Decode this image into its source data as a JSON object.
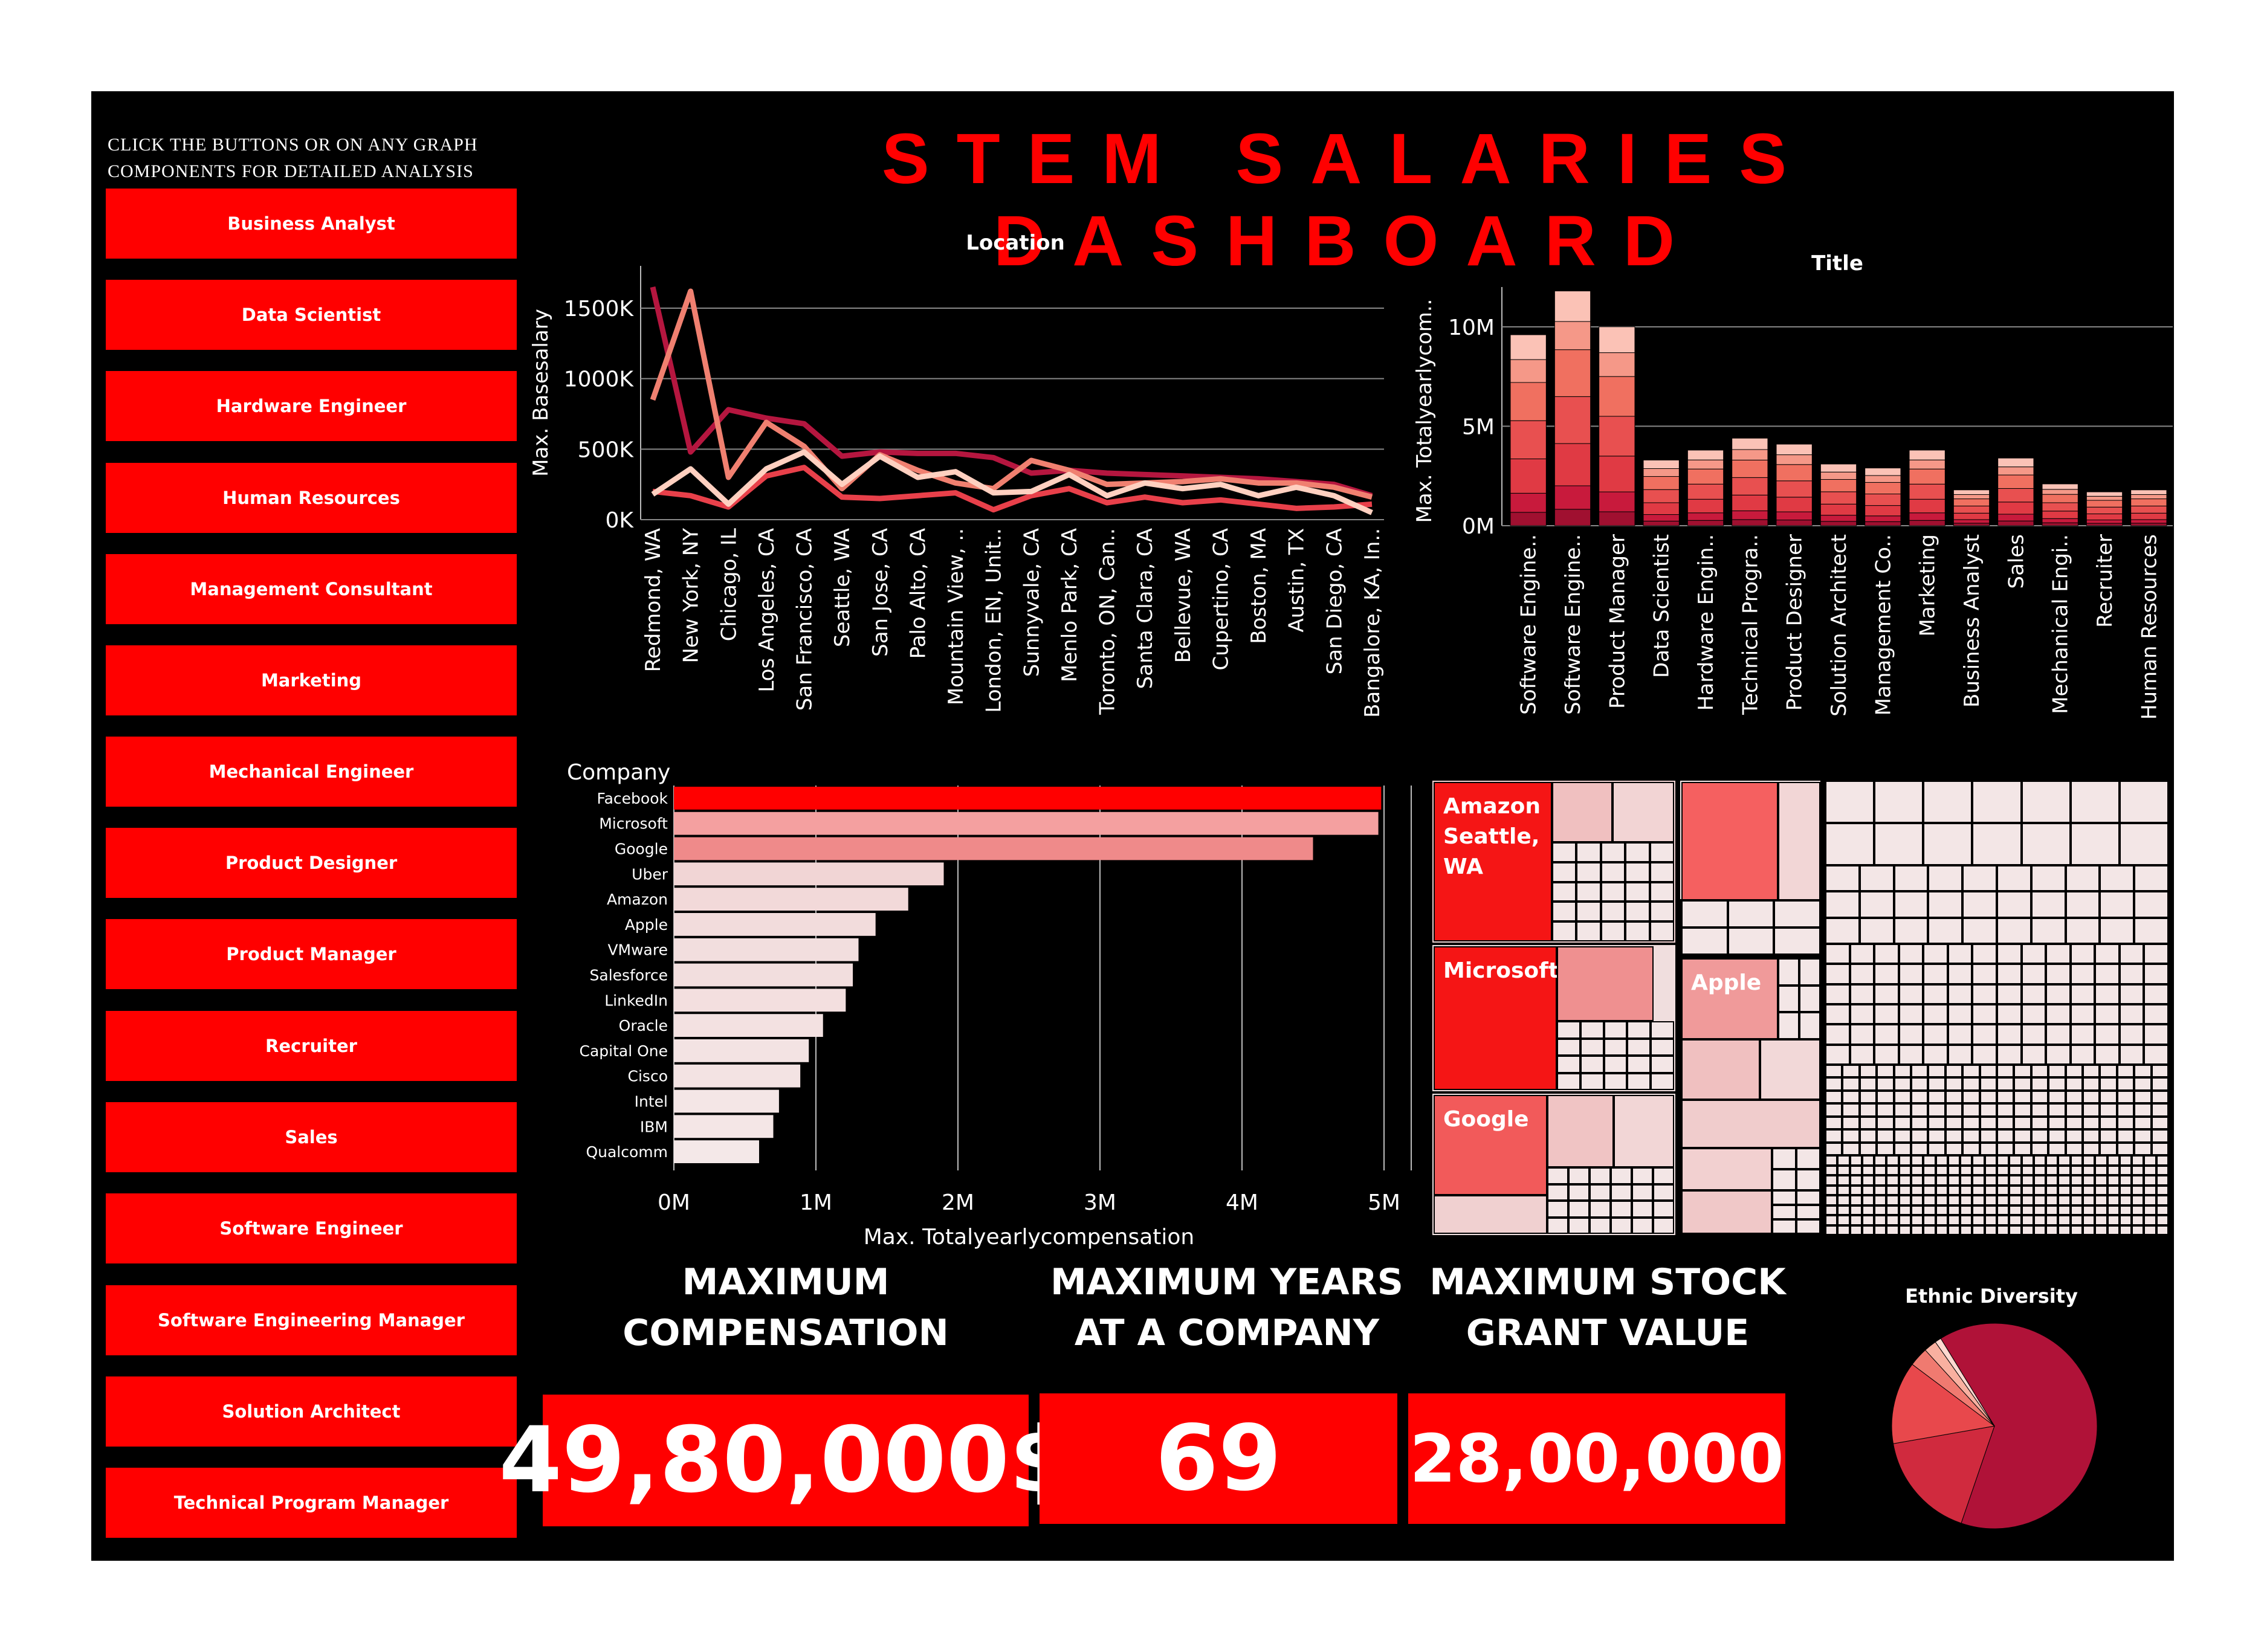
{
  "dashboard": {
    "title": "STEM SALARIES DASHBOARD",
    "instructions": "CLICK THE BUTTONS OR ON ANY GRAPH COMPONENTS FOR DETAILED ANALYSIS"
  },
  "filters": [
    "Business Analyst",
    "Data Scientist",
    "Hardware Engineer",
    "Human Resources",
    "Management Consultant",
    "Marketing",
    "Mechanical Engineer",
    "Product Designer",
    "Product Manager",
    "Recruiter",
    "Sales",
    "Software Engineer",
    "Software Engineering Manager",
    "Solution Architect",
    "Technical Program Manager"
  ],
  "kpis": {
    "max_compensation": {
      "label_line1": "MAXIMUM",
      "label_line2": "COMPENSATION",
      "value": "49,80,000$"
    },
    "max_years": {
      "label_line1": "MAXIMUM YEARS",
      "label_line2": "AT A COMPANY",
      "value": "69"
    },
    "max_stock": {
      "label_line1": "MAXIMUM STOCK",
      "label_line2": "GRANT VALUE",
      "value": "28,00,000"
    }
  },
  "colors": {
    "accent": "#ff0000",
    "background": "#000000"
  },
  "chart_data": [
    {
      "id": "location",
      "type": "line",
      "title": "Location",
      "ylabel": "Max. Basesalary",
      "ylim": [
        0,
        1800000
      ],
      "yticks": [
        "0K",
        "500K",
        "1000K",
        "1500K"
      ],
      "categories": [
        "Redmond, WA",
        "New York, NY",
        "Chicago, IL",
        "Los Angeles, CA",
        "San Francisco, CA",
        "Seattle, WA",
        "San Jose, CA",
        "Palo Alto, CA",
        "Mountain View, ..",
        "London, EN, Unit..",
        "Sunnyvale, CA",
        "Menlo Park, CA",
        "Toronto, ON, Can..",
        "Santa Clara, CA",
        "Bellevue, WA",
        "Cupertino, CA",
        "Boston, MA",
        "Austin, TX",
        "San Diego, CA",
        "Bangalore, KA, In.."
      ],
      "series": [
        {
          "color": "#b5163f",
          "values": [
            1650000,
            480000,
            780000,
            720000,
            680000,
            450000,
            480000,
            470000,
            470000,
            440000,
            330000,
            350000,
            330000,
            320000,
            310000,
            300000,
            290000,
            270000,
            250000,
            170000
          ]
        },
        {
          "color": "#f08070",
          "values": [
            850000,
            1620000,
            300000,
            690000,
            520000,
            220000,
            460000,
            350000,
            260000,
            220000,
            420000,
            350000,
            250000,
            260000,
            270000,
            290000,
            260000,
            260000,
            230000,
            160000
          ]
        },
        {
          "color": "#e8404a",
          "values": [
            200000,
            170000,
            90000,
            310000,
            370000,
            160000,
            150000,
            170000,
            190000,
            70000,
            170000,
            220000,
            120000,
            160000,
            120000,
            140000,
            110000,
            80000,
            90000,
            110000
          ]
        },
        {
          "color": "#ffd0c0",
          "values": [
            180000,
            360000,
            110000,
            360000,
            480000,
            250000,
            450000,
            300000,
            340000,
            190000,
            200000,
            320000,
            170000,
            260000,
            220000,
            250000,
            170000,
            230000,
            170000,
            50000
          ]
        }
      ]
    },
    {
      "id": "title",
      "type": "bar",
      "stacked": true,
      "title": "Title",
      "ylabel": "Max. Totalyearlycom..",
      "ylim": [
        0,
        12000000
      ],
      "yticks": [
        "0M",
        "5M",
        "10M"
      ],
      "categories": [
        "Software Engine..",
        "Software Engine..",
        "Product Manager",
        "Data Scientist",
        "Hardware Engin..",
        "Technical Progra..",
        "Product Designer",
        "Solution Architect",
        "Management Co..",
        "Marketing",
        "Business Analyst",
        "Sales",
        "Mechanical Engi..",
        "Recruiter",
        "Human Resources"
      ],
      "totals": [
        9600000,
        11800000,
        10000000,
        3300000,
        3800000,
        4400000,
        4100000,
        3100000,
        2900000,
        3800000,
        1800000,
        3400000,
        2100000,
        1700000,
        1800000
      ],
      "segment_colors": [
        "#a01030",
        "#c81a3c",
        "#e03a44",
        "#e85050",
        "#f07060",
        "#f59888",
        "#fbc2b6"
      ]
    },
    {
      "id": "company",
      "type": "bar",
      "orientation": "horizontal",
      "title": "Company",
      "xlabel": "Max. Totalyearlycompensation",
      "xlim": [
        0,
        5000000
      ],
      "xticks": [
        "0M",
        "1M",
        "2M",
        "3M",
        "4M",
        "5M"
      ],
      "categories": [
        "Facebook",
        "Microsoft",
        "Google",
        "Uber",
        "Amazon",
        "Apple",
        "VMware",
        "Salesforce",
        "LinkedIn",
        "Oracle",
        "Capital One",
        "Cisco",
        "Intel",
        "IBM",
        "Qualcomm"
      ],
      "values": [
        4980000,
        4960000,
        4500000,
        1900000,
        1650000,
        1420000,
        1300000,
        1260000,
        1210000,
        1050000,
        950000,
        890000,
        740000,
        700000,
        600000
      ]
    },
    {
      "id": "treemap",
      "type": "treemap",
      "labels": [
        "Amazon Seattle, WA",
        "Microsoft",
        "Google",
        "Apple"
      ]
    },
    {
      "id": "ethnic",
      "type": "pie",
      "title": "Ethnic Diversity",
      "values": [
        64,
        17,
        13,
        3,
        2,
        1
      ],
      "colors": [
        "#b01238",
        "#d02a3e",
        "#e8484c",
        "#f07a70",
        "#f9b0a0",
        "#ffd8d0"
      ]
    }
  ]
}
